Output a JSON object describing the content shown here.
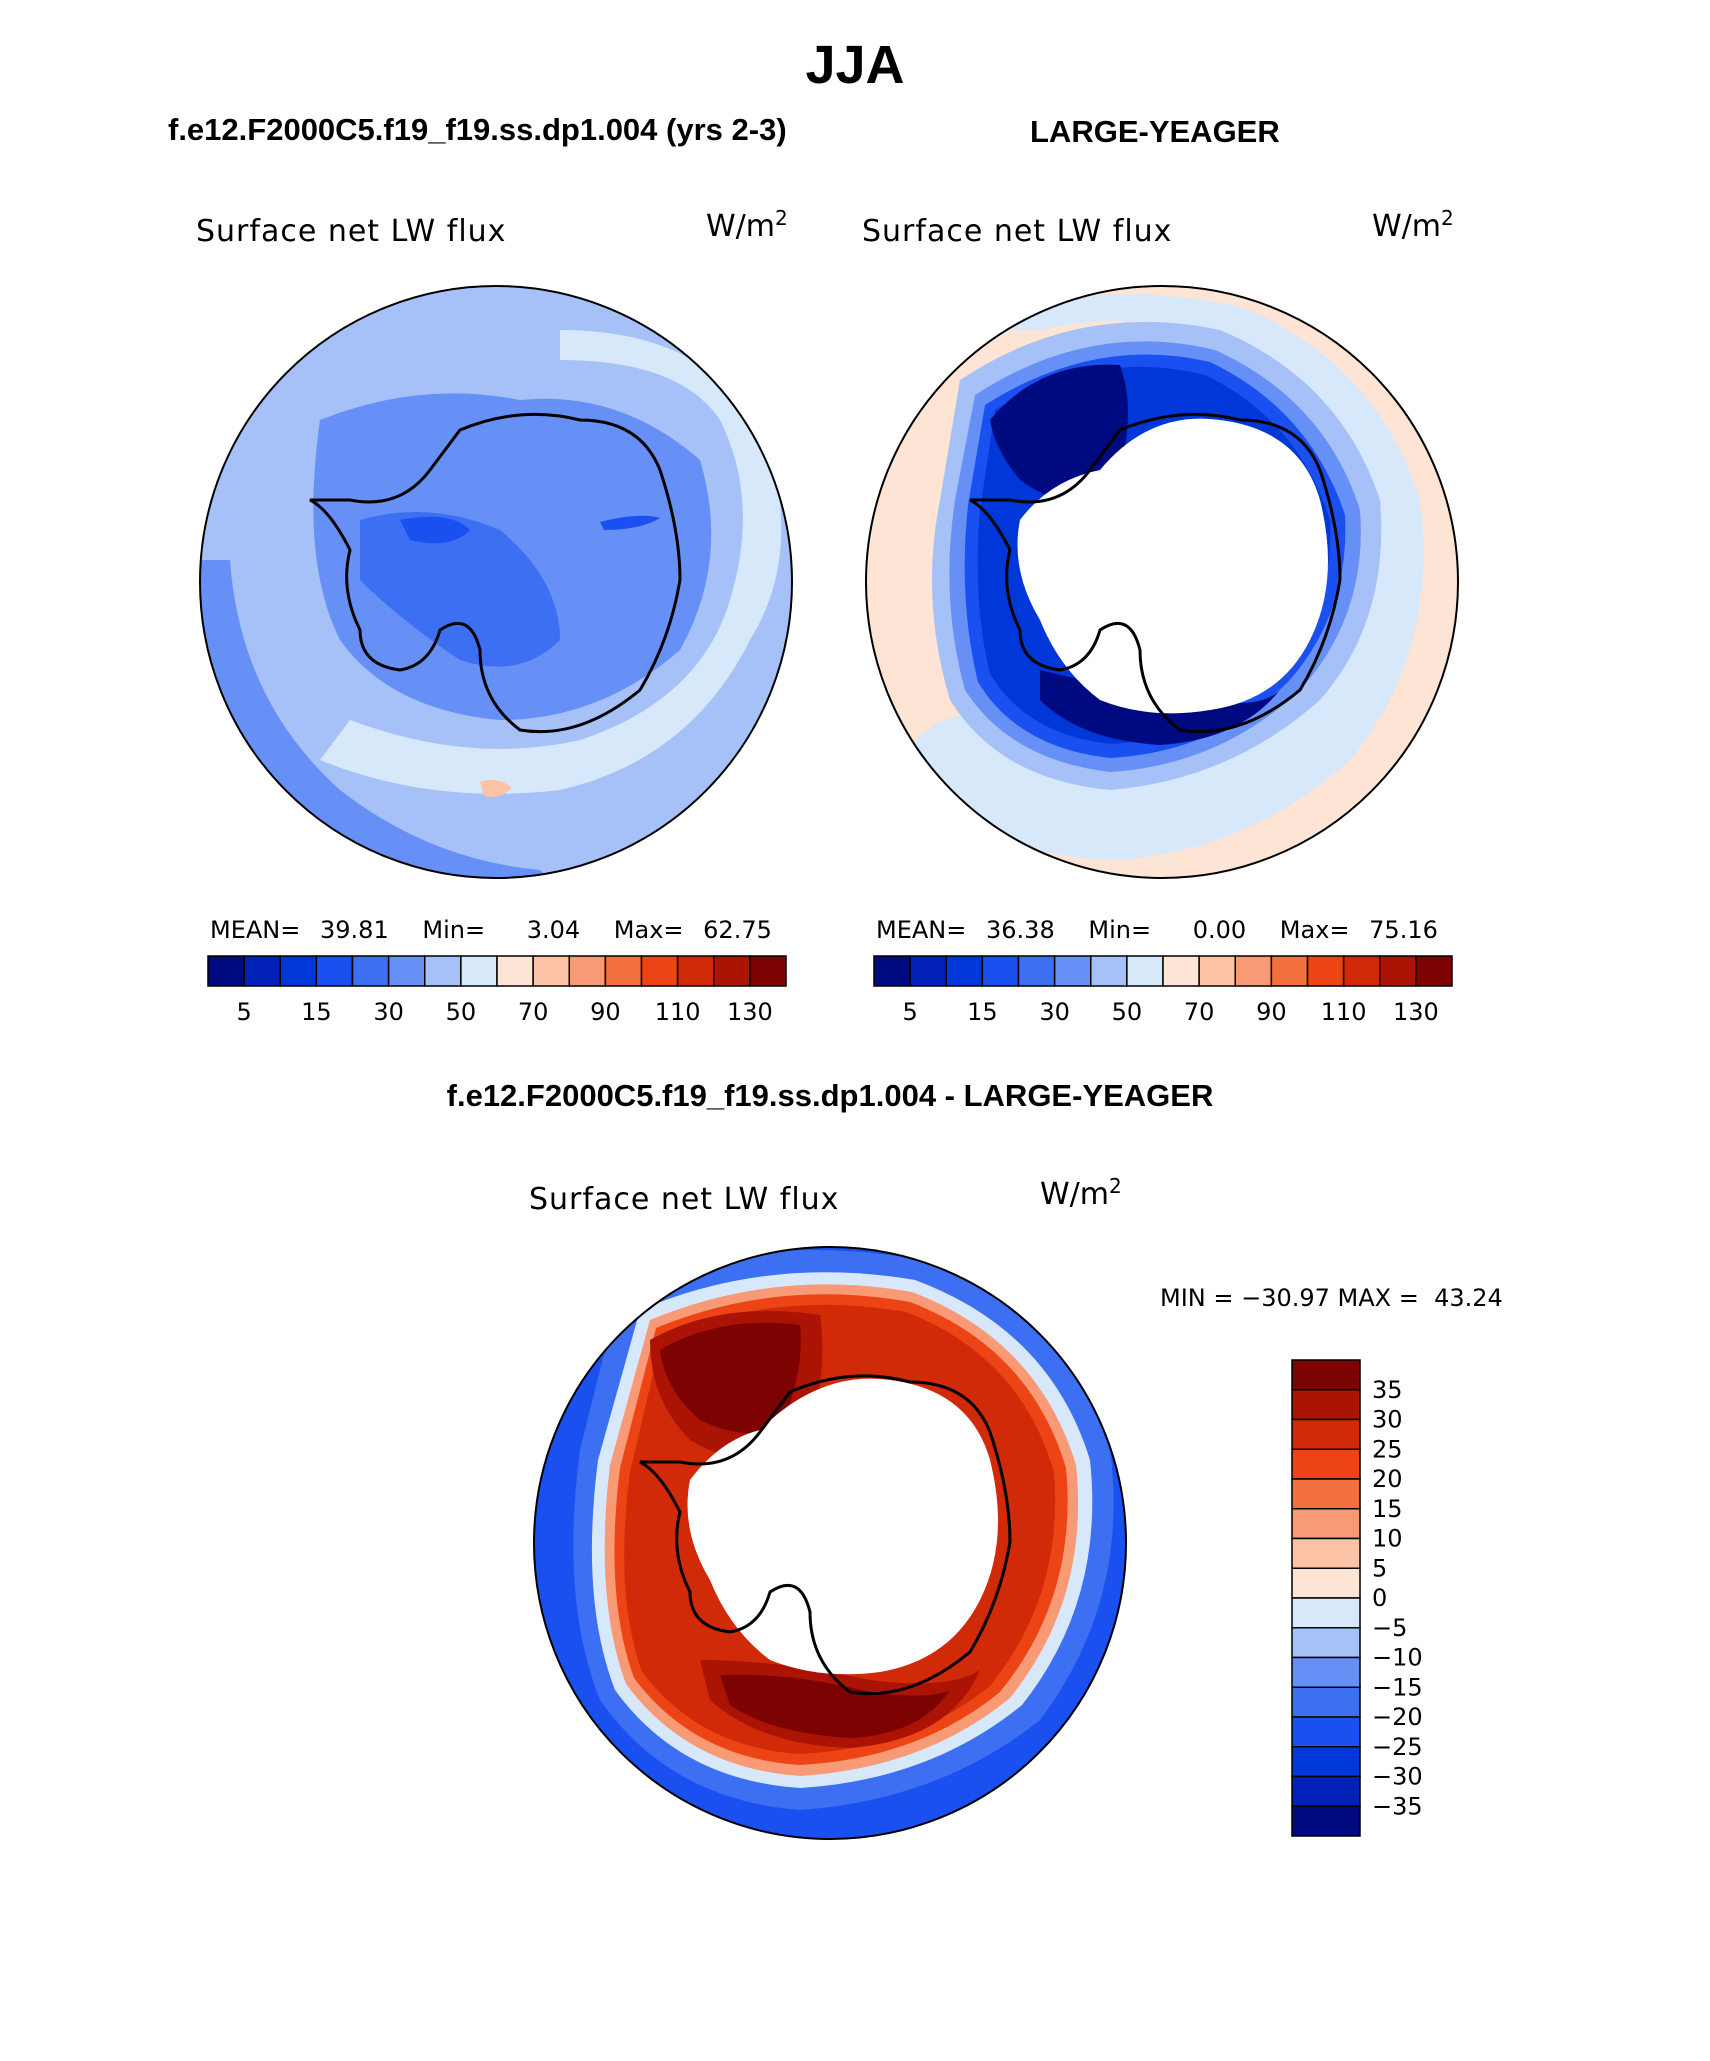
{
  "page": {
    "season": "JJA",
    "left_title": "f.e12.F2000C5.f19_f19.ss.dp1.004 (yrs 2-3)",
    "right_title": "LARGE-YEAGER",
    "diff_title": "f.e12.F2000C5.f19_f19.ss.dp1.004 - LARGE-YEAGER"
  },
  "panels": {
    "left": {
      "variable": "Surface net LW flux",
      "units_base": "W/m",
      "units_exp": "2",
      "mean_label": "MEAN=",
      "mean_value": "39.81",
      "min_label": "Min=",
      "min_value": "3.04",
      "max_label": "Max=",
      "max_value": "62.75"
    },
    "right": {
      "variable": "Surface net LW flux",
      "units_base": "W/m",
      "units_exp": "2",
      "mean_label": "MEAN=",
      "mean_value": "36.38",
      "min_label": "Min=",
      "min_value": "0.00",
      "max_label": "Max=",
      "max_value": "75.16"
    },
    "diff": {
      "variable": "Surface net LW flux",
      "units_base": "W/m",
      "units_exp": "2",
      "minmax_text": "MIN = −30.97 MAX =  43.24"
    }
  },
  "colorbars": {
    "abs_colors": [
      "#000a80",
      "#0020b8",
      "#0037d9",
      "#1a50f0",
      "#3d6ff2",
      "#6690f5",
      "#a6c0f8",
      "#d8e8fb",
      "#fde4d4",
      "#fcc3a6",
      "#f99a76",
      "#f4703f",
      "#ec4415",
      "#d02a08",
      "#ab1404",
      "#7c0301"
    ],
    "abs_ticks": [
      "5",
      "15",
      "30",
      "50",
      "70",
      "90",
      "110",
      "130"
    ],
    "diff_colors": [
      "#000a80",
      "#0020b8",
      "#0037d9",
      "#1a50f0",
      "#3d6ff2",
      "#6690f5",
      "#a6c0f8",
      "#d8e8fb",
      "#fde4d4",
      "#fcc3a6",
      "#f99a76",
      "#f4703f",
      "#ec4415",
      "#d02a08",
      "#ab1404",
      "#7c0301"
    ],
    "diff_ticks": [
      "35",
      "30",
      "25",
      "20",
      "15",
      "10",
      "5",
      "0",
      "−5",
      "−10",
      "−15",
      "−20",
      "−25",
      "−30",
      "−35"
    ]
  },
  "map_colors": {
    "left_ocean": "#a6c0f8",
    "left_pale": "#d8e8fb",
    "left_mid": "#6690f5",
    "left_dark": "#3d6ff2",
    "left_darkest": "#1a50f0",
    "left_warm": "#fcc3a6",
    "right_warm": "#fde4d4",
    "right_pale": "#d8e8fb",
    "right_light": "#a6c0f8",
    "right_mid": "#6690f5",
    "right_dark": "#1a50f0",
    "right_deep": "#0037d9",
    "right_darkest": "#000a80",
    "diff_blue": "#1a50f0",
    "diff_blue2": "#3d6ff2",
    "diff_pale": "#d8e8fb",
    "diff_warm": "#f99a76",
    "diff_red": "#ec4415",
    "diff_red2": "#d02a08",
    "diff_dark": "#ab1404",
    "diff_darkest": "#7c0301",
    "land": "#ffffff"
  }
}
